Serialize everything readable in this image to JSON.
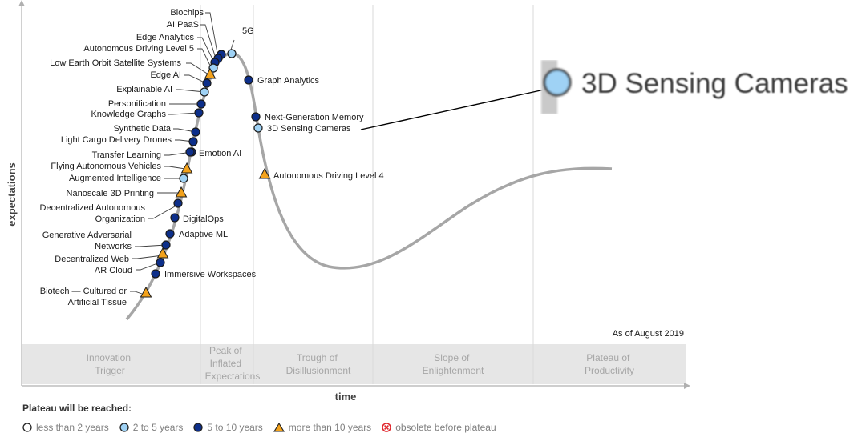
{
  "axes": {
    "y_label": "expectations",
    "x_label": "time"
  },
  "as_of": "As of August 2019",
  "phases": [
    {
      "lines": [
        "Innovation",
        "Trigger"
      ]
    },
    {
      "lines": [
        "Peak of",
        "Inflated",
        "Expectations"
      ]
    },
    {
      "lines": [
        "Trough of",
        "Disillusionment"
      ]
    },
    {
      "lines": [
        "Slope of",
        "Enlightenment"
      ]
    },
    {
      "lines": [
        "Plateau of",
        "Productivity"
      ]
    }
  ],
  "technologies": [
    {
      "name": "Biochips",
      "category": "5 to 10 years"
    },
    {
      "name": "AI PaaS",
      "category": "5 to 10 years"
    },
    {
      "name": "Edge Analytics",
      "category": "5 to 10 years"
    },
    {
      "name": "Autonomous Driving Level 5",
      "category": "2 to 5 years"
    },
    {
      "name": "Low Earth Orbit Satellite Systems",
      "category": "more than 10 years"
    },
    {
      "name": "Edge AI",
      "category": "5 to 10 years"
    },
    {
      "name": "Explainable AI",
      "category": "2 to 5 years"
    },
    {
      "name": "Personification",
      "category": "5 to 10 years"
    },
    {
      "name": "Knowledge Graphs",
      "category": "5 to 10 years"
    },
    {
      "name": "Synthetic Data",
      "category": "5 to 10 years"
    },
    {
      "name": "Light Cargo Delivery Drones",
      "category": "5 to 10 years"
    },
    {
      "name": "Transfer Learning",
      "category": "5 to 10 years"
    },
    {
      "name": "Flying Autonomous Vehicles",
      "category": "more than 10 years"
    },
    {
      "name": "Augmented Intelligence",
      "category": "2 to 5 years"
    },
    {
      "name": "Nanoscale 3D Printing",
      "category": "more than 10 years"
    },
    {
      "name": "Decentralized Autonomous Organization",
      "category": "5 to 10 years"
    },
    {
      "name": "Generative Adversarial Networks",
      "category": "5 to 10 years"
    },
    {
      "name": "Decentralized Web",
      "category": "more than 10 years"
    },
    {
      "name": "AR Cloud",
      "category": "5 to 10 years"
    },
    {
      "name": "Biotech — Cultured or Artificial Tissue",
      "category": "more than 10 years"
    },
    {
      "name": "5G",
      "category": "2 to 5 years"
    },
    {
      "name": "Graph Analytics",
      "category": "5 to 10 years"
    },
    {
      "name": "Next-Generation Memory",
      "category": "5 to 10 years"
    },
    {
      "name": "3D Sensing Cameras",
      "category": "2 to 5 years"
    },
    {
      "name": "Autonomous Driving Level 4",
      "category": "more than 10 years"
    },
    {
      "name": "Emotion AI",
      "category": "5 to 10 years"
    },
    {
      "name": "DigitalOps",
      "category": "5 to 10 years"
    },
    {
      "name": "Adaptive ML",
      "category": "5 to 10 years"
    },
    {
      "name": "Immersive Workspaces",
      "category": "5 to 10 years"
    }
  ],
  "callout": {
    "label": "3D Sensing Cameras",
    "category": "2 to 5 years"
  },
  "legend": {
    "title": "Plateau will be reached:",
    "items": [
      {
        "key": "lt2",
        "label": "less than 2 years"
      },
      {
        "key": "2to5",
        "label": "2 to 5 years"
      },
      {
        "key": "5to10",
        "label": "5 to 10 years"
      },
      {
        "key": "gt10",
        "label": "more than 10 years"
      },
      {
        "key": "obs",
        "label": "obsolete before plateau"
      }
    ]
  },
  "colors": {
    "curve": "#a6a6a6",
    "lt2": "#ffffff",
    "2to5": "#9fd2f5",
    "5to10": "#0d2f8a",
    "gt10": "#f3a21b",
    "obsolete": "#e0282e",
    "phase_band": "#e6e6e6"
  }
}
